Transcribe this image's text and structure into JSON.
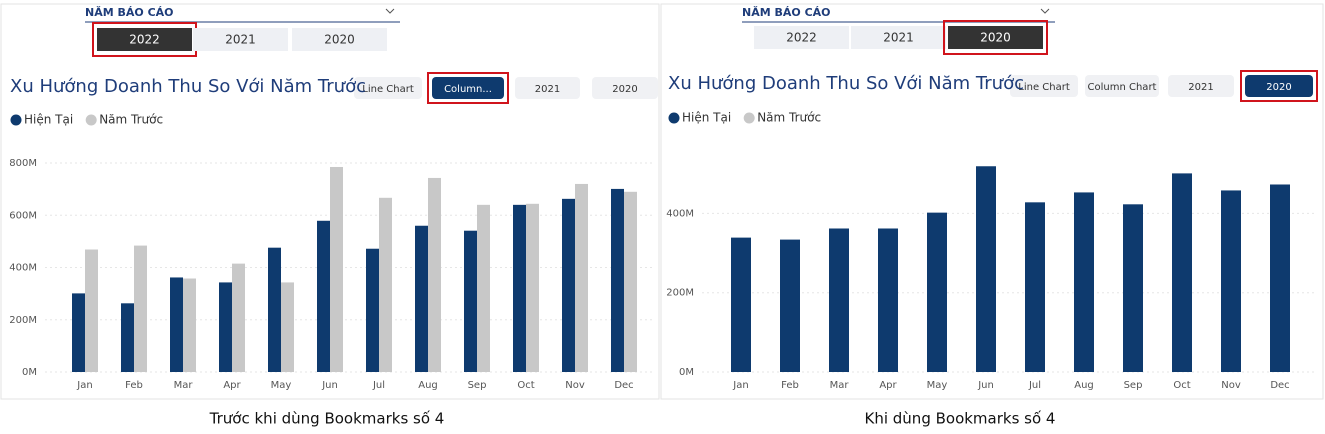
{
  "panels": [
    {
      "slicer_title": "NĂM BÁO CÁO",
      "slicer_options": [
        "2022",
        "2021",
        "2020"
      ],
      "selected_option": 0,
      "buttons": [
        "Line Chart",
        "Column...",
        "2021",
        "2020"
      ],
      "selected_button": 1,
      "caption": "Trước khi dùng Bookmarks số 4"
    },
    {
      "slicer_title": "NĂM BÁO CÁO",
      "slicer_options": [
        "2022",
        "2021",
        "2020"
      ],
      "selected_option": 2,
      "buttons": [
        "Line Chart",
        "Column Chart",
        "2021",
        "2020"
      ],
      "selected_button": 3,
      "caption": "Khi dùng Bookmarks số 4"
    }
  ],
  "chart_data": [
    {
      "type": "bar",
      "title": "Xu Hướng Doanh Thu So Với Năm Trước",
      "categories": [
        "Jan",
        "Feb",
        "Mar",
        "Apr",
        "May",
        "Jun",
        "Jul",
        "Aug",
        "Sep",
        "Oct",
        "Nov",
        "Dec"
      ],
      "series": [
        {
          "name": "Hiện Tại",
          "color": "#0e3a6e",
          "values": [
            301,
            263,
            362,
            343,
            476,
            579,
            472,
            560,
            541,
            640,
            663,
            701
          ]
        },
        {
          "name": "Năm Trước",
          "color": "#c8c8c8",
          "values": [
            469,
            484,
            358,
            415,
            343,
            785,
            667,
            743,
            640,
            644,
            720,
            690
          ]
        }
      ],
      "ylim": [
        0,
        850
      ],
      "yticks": [
        {
          "value": 0,
          "label": "0M"
        },
        {
          "value": 200,
          "label": "200M"
        },
        {
          "value": 400,
          "label": "400M"
        },
        {
          "value": 600,
          "label": "600M"
        },
        {
          "value": 800,
          "label": "800M"
        }
      ],
      "grid": true
    },
    {
      "type": "bar",
      "title": "Xu Hướng Doanh Thu So Với Năm Trước",
      "categories": [
        "Jan",
        "Feb",
        "Mar",
        "Apr",
        "May",
        "Jun",
        "Jul",
        "Aug",
        "Sep",
        "Oct",
        "Nov",
        "Dec"
      ],
      "series": [
        {
          "name": "Hiện Tại",
          "color": "#0e3a6e",
          "values": [
            339,
            334,
            362,
            362,
            402,
            519,
            428,
            453,
            423,
            501,
            458,
            473
          ]
        },
        {
          "name": "Năm Trước",
          "color": "#c8c8c8",
          "values": [
            null,
            null,
            null,
            null,
            null,
            null,
            null,
            null,
            null,
            null,
            null,
            null
          ]
        }
      ],
      "ylim": [
        0,
        560
      ],
      "yticks": [
        {
          "value": 0,
          "label": "0M"
        },
        {
          "value": 200,
          "label": "200M"
        },
        {
          "value": 400,
          "label": "400M"
        }
      ],
      "grid": true
    }
  ]
}
